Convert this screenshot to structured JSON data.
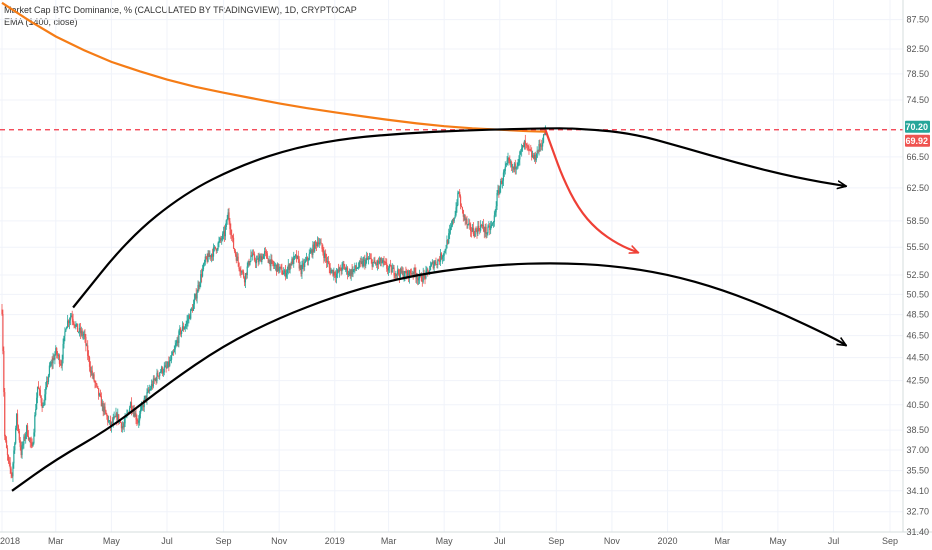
{
  "header": {
    "symbol_line": "Market Cap BTC Dominance, % (CALCULATED BY TRADINGVIEW), 1D, CRYPTOCAP",
    "indicator_line": "EMA (1400, close)"
  },
  "colors": {
    "up": "#26a69a",
    "down": "#ef5350",
    "ema": "#f57c16",
    "hline": "#f23645",
    "black_curve": "#000000",
    "red_arrow": "#ef4036",
    "price_tag": "#26a69a",
    "ema_tag": "#ef5350"
  },
  "chart_data": {
    "type": "candlestick",
    "title": "Market Cap BTC Dominance, % (CALCULATED BY TRADINGVIEW), 1D, CRYPTOCAP",
    "y_scale": "log",
    "ylim": [
      31.4,
      91.0
    ],
    "xlim": [
      "2018-01-01",
      "2020-09-20"
    ],
    "y_ticks": [
      "87.50",
      "82.50",
      "78.50",
      "74.50",
      "70.20",
      "69.92",
      "66.50",
      "62.50",
      "58.50",
      "55.50",
      "52.50",
      "50.50",
      "48.50",
      "46.50",
      "44.50",
      "42.50",
      "40.50",
      "38.50",
      "37.00",
      "35.50",
      "34.10",
      "32.70",
      "31.40"
    ],
    "x_ticks": [
      {
        "label": "2018",
        "date": "2018-01-01"
      },
      {
        "label": "Mar",
        "date": "2018-03-01"
      },
      {
        "label": "May",
        "date": "2018-05-01"
      },
      {
        "label": "Jul",
        "date": "2018-07-01"
      },
      {
        "label": "Sep",
        "date": "2018-09-01"
      },
      {
        "label": "Nov",
        "date": "2018-11-01"
      },
      {
        "label": "2019",
        "date": "2019-01-01"
      },
      {
        "label": "Mar",
        "date": "2019-03-01"
      },
      {
        "label": "May",
        "date": "2019-05-01"
      },
      {
        "label": "Jul",
        "date": "2019-07-01"
      },
      {
        "label": "Sep",
        "date": "2019-09-01"
      },
      {
        "label": "Nov",
        "date": "2019-11-01"
      },
      {
        "label": "2020",
        "date": "2020-01-01"
      },
      {
        "label": "Mar",
        "date": "2020-03-01"
      },
      {
        "label": "May",
        "date": "2020-05-01"
      },
      {
        "label": "Jul",
        "date": "2020-07-01"
      },
      {
        "label": "Sep",
        "date": "2020-09-01"
      }
    ],
    "price_path": [
      [
        "2018-01-01",
        49.0
      ],
      [
        "2018-01-04",
        38.0
      ],
      [
        "2018-01-08",
        36.0
      ],
      [
        "2018-01-12",
        35.2
      ],
      [
        "2018-01-17",
        39.5
      ],
      [
        "2018-01-22",
        36.8
      ],
      [
        "2018-01-28",
        38.6
      ],
      [
        "2018-02-03",
        37.0
      ],
      [
        "2018-02-09",
        42.0
      ],
      [
        "2018-02-15",
        40.3
      ],
      [
        "2018-02-22",
        43.5
      ],
      [
        "2018-03-01",
        45.0
      ],
      [
        "2018-03-07",
        44.0
      ],
      [
        "2018-03-12",
        47.5
      ],
      [
        "2018-03-18",
        48.5
      ],
      [
        "2018-03-25",
        47.0
      ],
      [
        "2018-04-01",
        46.5
      ],
      [
        "2018-04-08",
        43.5
      ],
      [
        "2018-04-14",
        42.0
      ],
      [
        "2018-04-22",
        40.2
      ],
      [
        "2018-04-30",
        38.8
      ],
      [
        "2018-05-07",
        39.6
      ],
      [
        "2018-05-14",
        38.7
      ],
      [
        "2018-05-22",
        40.6
      ],
      [
        "2018-05-30",
        39.2
      ],
      [
        "2018-06-07",
        41.0
      ],
      [
        "2018-06-15",
        42.2
      ],
      [
        "2018-06-23",
        43.3
      ],
      [
        "2018-07-01",
        43.6
      ],
      [
        "2018-07-08",
        44.8
      ],
      [
        "2018-07-15",
        46.8
      ],
      [
        "2018-07-22",
        47.6
      ],
      [
        "2018-07-30",
        49.4
      ],
      [
        "2018-08-06",
        52.0
      ],
      [
        "2018-08-12",
        54.0
      ],
      [
        "2018-08-19",
        54.8
      ],
      [
        "2018-08-26",
        55.8
      ],
      [
        "2018-09-02",
        57.0
      ],
      [
        "2018-09-06",
        59.3
      ],
      [
        "2018-09-12",
        55.5
      ],
      [
        "2018-09-18",
        53.5
      ],
      [
        "2018-09-24",
        52.2
      ],
      [
        "2018-10-01",
        54.6
      ],
      [
        "2018-10-08",
        53.9
      ],
      [
        "2018-10-16",
        54.8
      ],
      [
        "2018-10-24",
        53.6
      ],
      [
        "2018-10-31",
        53.2
      ],
      [
        "2018-11-07",
        52.6
      ],
      [
        "2018-11-14",
        53.8
      ],
      [
        "2018-11-20",
        54.4
      ],
      [
        "2018-11-25",
        53.0
      ],
      [
        "2018-12-02",
        54.2
      ],
      [
        "2018-12-09",
        55.5
      ],
      [
        "2018-12-14",
        56.3
      ],
      [
        "2018-12-20",
        54.8
      ],
      [
        "2018-12-27",
        53.0
      ],
      [
        "2019-01-03",
        52.6
      ],
      [
        "2019-01-10",
        53.4
      ],
      [
        "2019-01-17",
        52.7
      ],
      [
        "2019-01-24",
        53.2
      ],
      [
        "2019-01-31",
        53.7
      ],
      [
        "2019-02-07",
        54.2
      ],
      [
        "2019-02-14",
        53.6
      ],
      [
        "2019-02-21",
        53.9
      ],
      [
        "2019-02-28",
        53.2
      ],
      [
        "2019-03-07",
        52.9
      ],
      [
        "2019-03-14",
        52.7
      ],
      [
        "2019-03-21",
        52.5
      ],
      [
        "2019-03-28",
        52.9
      ],
      [
        "2019-04-04",
        52.1
      ],
      [
        "2019-04-11",
        52.5
      ],
      [
        "2019-04-18",
        53.6
      ],
      [
        "2019-04-25",
        54.1
      ],
      [
        "2019-05-01",
        55.0
      ],
      [
        "2019-05-07",
        57.0
      ],
      [
        "2019-05-13",
        59.5
      ],
      [
        "2019-05-17",
        62.0
      ],
      [
        "2019-05-20",
        59.8
      ],
      [
        "2019-05-27",
        57.8
      ],
      [
        "2019-06-03",
        57.2
      ],
      [
        "2019-06-10",
        57.9
      ],
      [
        "2019-06-17",
        57.2
      ],
      [
        "2019-06-24",
        58.2
      ],
      [
        "2019-06-28",
        61.4
      ],
      [
        "2019-07-03",
        63.4
      ],
      [
        "2019-07-10",
        65.8
      ],
      [
        "2019-07-16",
        64.8
      ],
      [
        "2019-07-22",
        66.5
      ],
      [
        "2019-07-28",
        68.2
      ],
      [
        "2019-08-03",
        67.0
      ],
      [
        "2019-08-08",
        66.2
      ],
      [
        "2019-08-12",
        67.5
      ],
      [
        "2019-08-17",
        68.6
      ],
      [
        "2019-08-20",
        70.2
      ]
    ],
    "ema_1400": [
      [
        "2018-01-01",
        90.5
      ],
      [
        "2018-02-01",
        87.2
      ],
      [
        "2018-03-01",
        84.6
      ],
      [
        "2018-04-01",
        82.3
      ],
      [
        "2018-05-01",
        80.4
      ],
      [
        "2018-06-01",
        78.9
      ],
      [
        "2018-07-01",
        77.6
      ],
      [
        "2018-08-01",
        76.5
      ],
      [
        "2018-09-01",
        75.6
      ],
      [
        "2018-10-01",
        74.8
      ],
      [
        "2018-11-01",
        74.0
      ],
      [
        "2018-12-01",
        73.3
      ],
      [
        "2019-01-01",
        72.7
      ],
      [
        "2019-02-01",
        72.1
      ],
      [
        "2019-03-01",
        71.6
      ],
      [
        "2019-04-01",
        71.1
      ],
      [
        "2019-05-01",
        70.7
      ],
      [
        "2019-06-01",
        70.4
      ],
      [
        "2019-07-01",
        70.2
      ],
      [
        "2019-08-01",
        70.0
      ],
      [
        "2019-08-20",
        69.92
      ]
    ],
    "horizontal_line": 70.2,
    "last_price": "70.20",
    "ema_value": "69.92",
    "drawings": [
      {
        "kind": "polyline",
        "name": "upper-arc",
        "color": "#000000",
        "arrow": "end",
        "points": [
          [
            "2018-03-20",
            49.2
          ],
          [
            "2018-05-20",
            56.5
          ],
          [
            "2018-07-20",
            61.8
          ],
          [
            "2018-09-20",
            65.4
          ],
          [
            "2018-11-20",
            67.8
          ],
          [
            "2019-01-20",
            69.1
          ],
          [
            "2019-03-20",
            69.7
          ],
          [
            "2019-05-20",
            70.1
          ],
          [
            "2019-07-20",
            70.3
          ],
          [
            "2019-08-20",
            70.4
          ],
          [
            "2019-09-20",
            70.4
          ],
          [
            "2019-11-20",
            69.8
          ],
          [
            "2020-01-20",
            67.7
          ],
          [
            "2020-03-20",
            65.6
          ],
          [
            "2020-05-20",
            63.8
          ],
          [
            "2020-07-15",
            62.7
          ]
        ]
      },
      {
        "kind": "polyline",
        "name": "lower-arc",
        "color": "#000000",
        "arrow": "end",
        "points": [
          [
            "2018-01-12",
            34.1
          ],
          [
            "2018-03-01",
            36.3
          ],
          [
            "2018-05-01",
            38.7
          ],
          [
            "2018-07-01",
            42.2
          ],
          [
            "2018-09-01",
            45.6
          ],
          [
            "2018-11-01",
            48.2
          ],
          [
            "2019-01-01",
            50.3
          ],
          [
            "2019-03-01",
            51.9
          ],
          [
            "2019-05-01",
            53.0
          ],
          [
            "2019-07-01",
            53.6
          ],
          [
            "2019-09-01",
            53.8
          ],
          [
            "2019-11-01",
            53.5
          ],
          [
            "2020-01-01",
            52.6
          ],
          [
            "2020-03-01",
            51.0
          ],
          [
            "2020-05-01",
            48.8
          ],
          [
            "2020-07-01",
            46.3
          ],
          [
            "2020-07-15",
            45.6
          ]
        ]
      },
      {
        "kind": "polyline",
        "name": "red-projection",
        "color": "#ef4036",
        "arrow": "end",
        "points": [
          [
            "2019-08-20",
            70.2
          ],
          [
            "2019-08-28",
            67.4
          ],
          [
            "2019-09-08",
            63.8
          ],
          [
            "2019-09-25",
            60.0
          ],
          [
            "2019-10-15",
            57.5
          ],
          [
            "2019-11-08",
            55.8
          ],
          [
            "2019-11-30",
            54.9
          ]
        ]
      }
    ]
  }
}
